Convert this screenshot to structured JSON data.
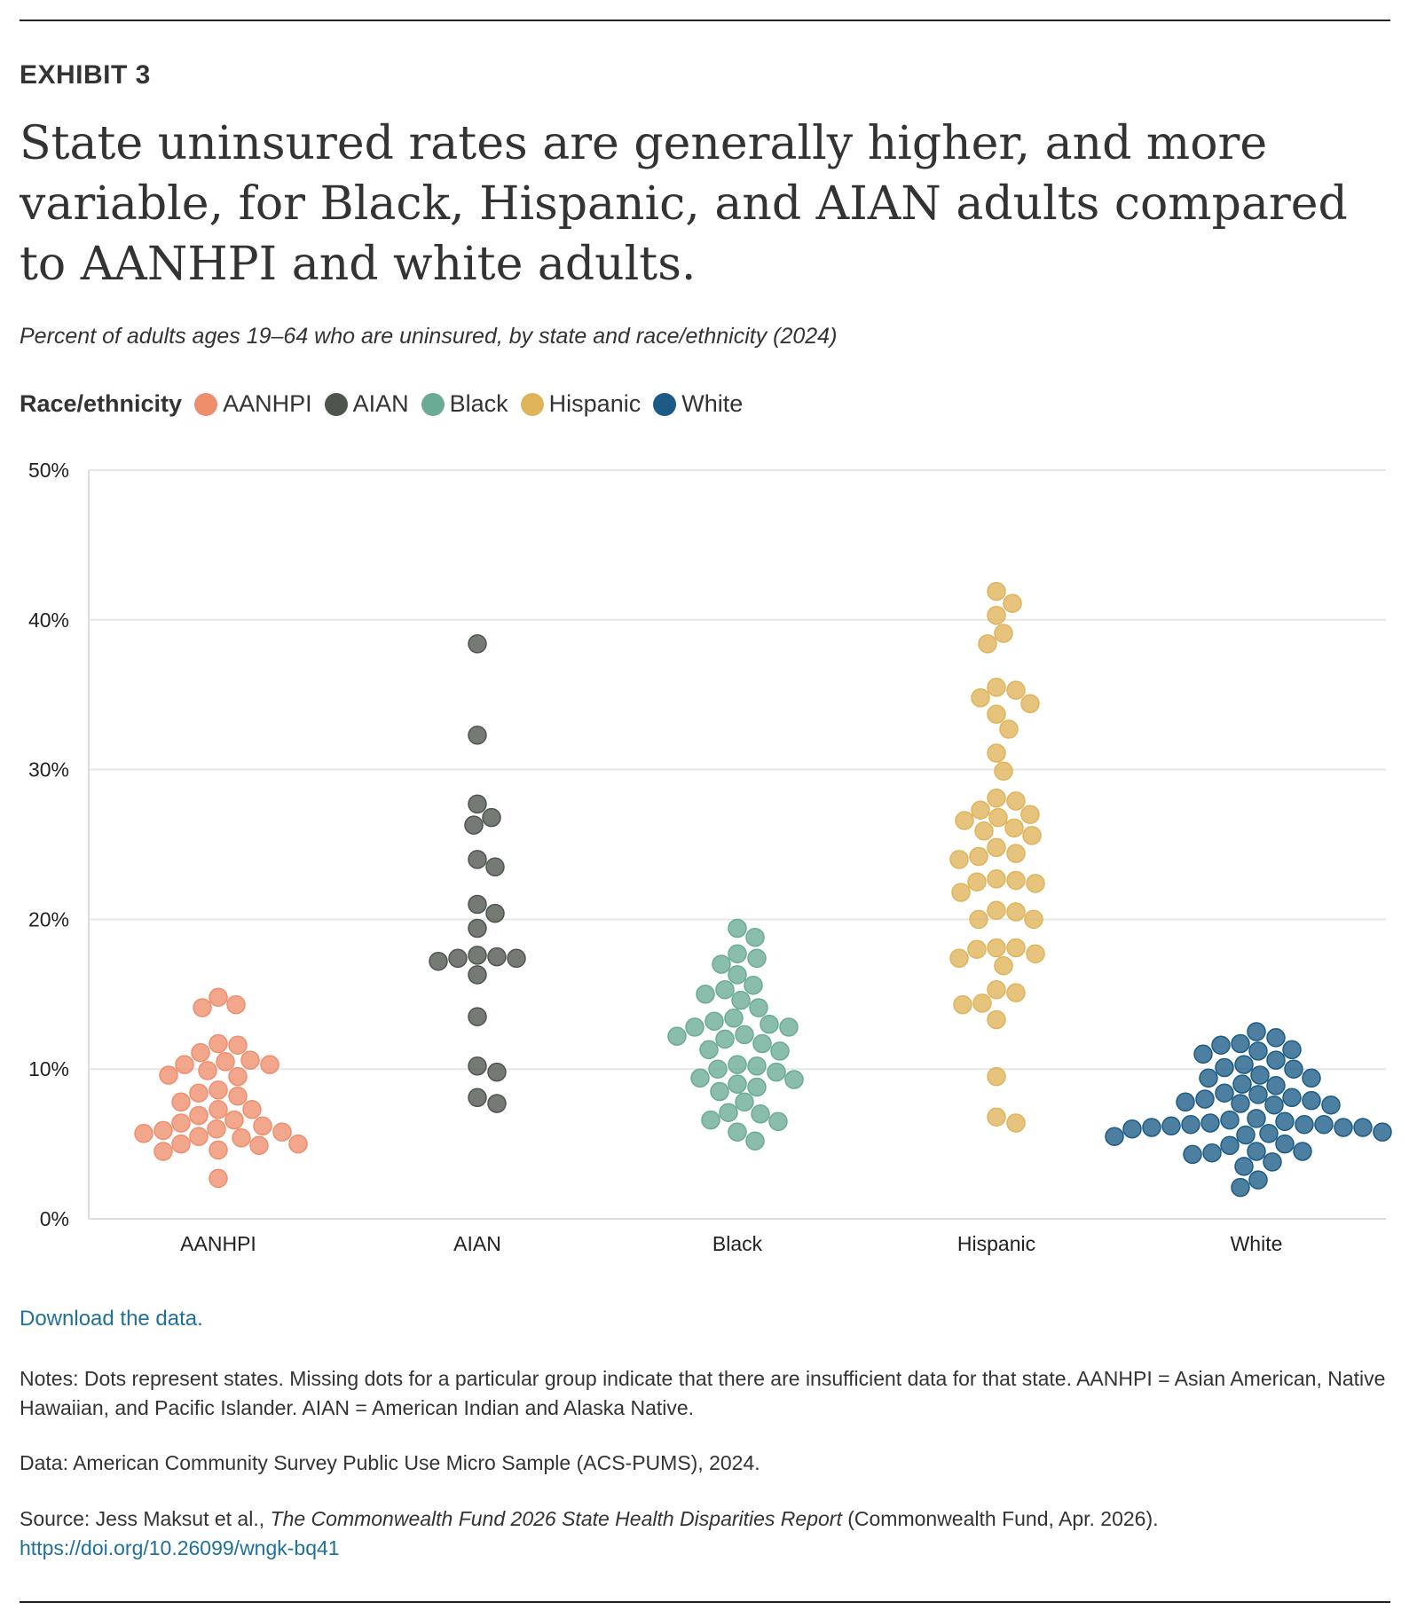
{
  "exhibit": "EXHIBIT 3",
  "title": "State uninsured rates are generally higher, and more variable, for Black, Hispanic, and AIAN adults compared to AANHPI and white adults.",
  "subtitle": "Percent of adults ages 19–64 who are uninsured, by state and race/ethnicity (2024)",
  "legend_title": "Race/ethnicity",
  "download": "Download the data.",
  "notes": "Notes: Dots represent states. Missing dots for a particular group indicate that there are insufficient data for that state. AANHPI = Asian American, Native Hawaiian, and Pacific Islander. AIAN = American Indian and Alaska Native.",
  "data_source": "Data: American Community Survey Public Use Micro Sample (ACS-PUMS), 2024.",
  "source_prefix": "Source: Jess Maksut et al., ",
  "source_title": "The Commonwealth Fund 2026 State Health Disparities Report",
  "source_suffix": " (Commonwealth Fund, Apr. 2026).",
  "doi": "https://doi.org/10.26099/wngk-bq41",
  "chart_data": {
    "type": "scatter",
    "ylim": [
      0,
      50
    ],
    "yticks": [
      0,
      10,
      20,
      30,
      40,
      50
    ],
    "ytick_labels": [
      "0%",
      "10%",
      "20%",
      "30%",
      "40%",
      "50%"
    ],
    "grid": true,
    "legend_position": "top-left",
    "categories": [
      "AANHPI",
      "AIAN",
      "Black",
      "Hispanic",
      "White"
    ],
    "series": [
      {
        "name": "AANHPI",
        "color": "#ee8e6d",
        "values": [
          14.8,
          14.3,
          14.1,
          11.7,
          11.6,
          11.1,
          10.6,
          10.5,
          10.3,
          10.3,
          9.9,
          9.6,
          9.5,
          8.6,
          8.4,
          8.2,
          7.8,
          7.3,
          7.3,
          6.9,
          6.6,
          6.4,
          6.2,
          6.0,
          5.9,
          5.8,
          5.7,
          5.5,
          5.4,
          5.0,
          5.0,
          4.9,
          4.6,
          4.5,
          2.7
        ]
      },
      {
        "name": "AIAN",
        "color": "#4e544e",
        "values": [
          38.4,
          32.3,
          27.7,
          26.8,
          26.3,
          24.0,
          23.5,
          21.0,
          20.4,
          19.4,
          17.6,
          17.5,
          17.4,
          17.4,
          17.2,
          16.3,
          13.5,
          10.2,
          9.8,
          8.1,
          7.7
        ]
      },
      {
        "name": "Black",
        "color": "#6aab95",
        "values": [
          19.4,
          18.8,
          17.7,
          17.4,
          17.0,
          16.3,
          15.6,
          15.3,
          15.0,
          14.6,
          14.1,
          13.4,
          13.2,
          13.0,
          12.8,
          12.8,
          12.3,
          12.2,
          12.0,
          11.7,
          11.3,
          11.2,
          10.3,
          10.2,
          10.0,
          9.8,
          9.4,
          9.3,
          9.0,
          8.8,
          8.5,
          7.8,
          7.1,
          7.0,
          6.6,
          6.5,
          5.8,
          5.2
        ]
      },
      {
        "name": "Hispanic",
        "color": "#dfb45a",
        "values": [
          41.9,
          41.1,
          40.3,
          39.1,
          38.4,
          35.5,
          35.3,
          34.8,
          34.4,
          33.7,
          32.7,
          31.1,
          29.9,
          28.1,
          27.9,
          27.3,
          27.0,
          26.8,
          26.6,
          26.1,
          25.9,
          25.6,
          24.8,
          24.4,
          24.2,
          24.0,
          22.7,
          22.6,
          22.5,
          22.4,
          21.8,
          20.6,
          20.5,
          20.0,
          20.0,
          18.1,
          18.1,
          18.0,
          17.7,
          17.4,
          16.9,
          15.3,
          15.1,
          14.4,
          14.3,
          13.3,
          9.5,
          6.8,
          6.4
        ]
      },
      {
        "name": "White",
        "color": "#1b5b85",
        "values": [
          12.5,
          12.1,
          11.7,
          11.6,
          11.3,
          11.2,
          11.0,
          10.6,
          10.3,
          10.1,
          10.0,
          9.6,
          9.4,
          9.4,
          9.0,
          8.9,
          8.4,
          8.3,
          8.1,
          8.0,
          7.9,
          7.8,
          7.7,
          7.6,
          7.6,
          6.7,
          6.6,
          6.5,
          6.4,
          6.3,
          6.3,
          6.3,
          6.2,
          6.1,
          6.1,
          6.1,
          6.0,
          5.8,
          5.7,
          5.6,
          5.5,
          5.0,
          4.9,
          4.5,
          4.5,
          4.4,
          4.3,
          3.8,
          3.5,
          2.6,
          2.1
        ]
      }
    ]
  }
}
